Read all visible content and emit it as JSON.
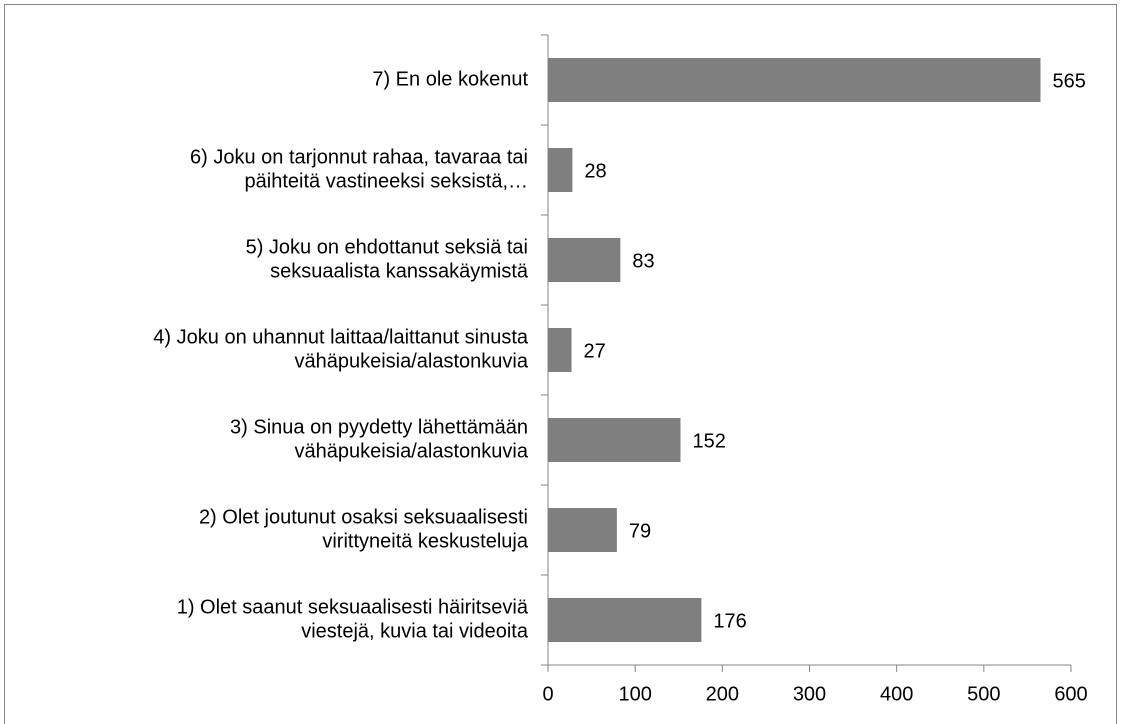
{
  "chart_data": {
    "type": "bar",
    "orientation": "horizontal",
    "categories": [
      [
        "7) En ole kokenut"
      ],
      [
        "6) Joku on tarjonnut rahaa, tavaraa tai",
        "päihteitä vastineeksi seksistä,…"
      ],
      [
        "5) Joku on ehdottanut seksiä tai",
        "seksuaalista kanssakäymistä"
      ],
      [
        "4) Joku on uhannut laittaa/laittanut sinusta",
        "vähäpukeisia/alastonkuvia"
      ],
      [
        "3) Sinua on pyydetty lähettämään",
        "vähäpukeisia/alastonkuvia"
      ],
      [
        "2) Olet joutunut osaksi seksuaalisesti",
        "virittyneitä keskusteluja"
      ],
      [
        "1) Olet saanut seksuaalisesti häiritseviä",
        "viestejä, kuvia tai videoita"
      ]
    ],
    "values": [
      565,
      28,
      83,
      27,
      152,
      79,
      176
    ],
    "color": "#7f7f7f",
    "xlim": [
      0,
      600
    ],
    "xticks": [
      0,
      100,
      200,
      300,
      400,
      500,
      600
    ],
    "grid": false,
    "data_labels": true
  }
}
